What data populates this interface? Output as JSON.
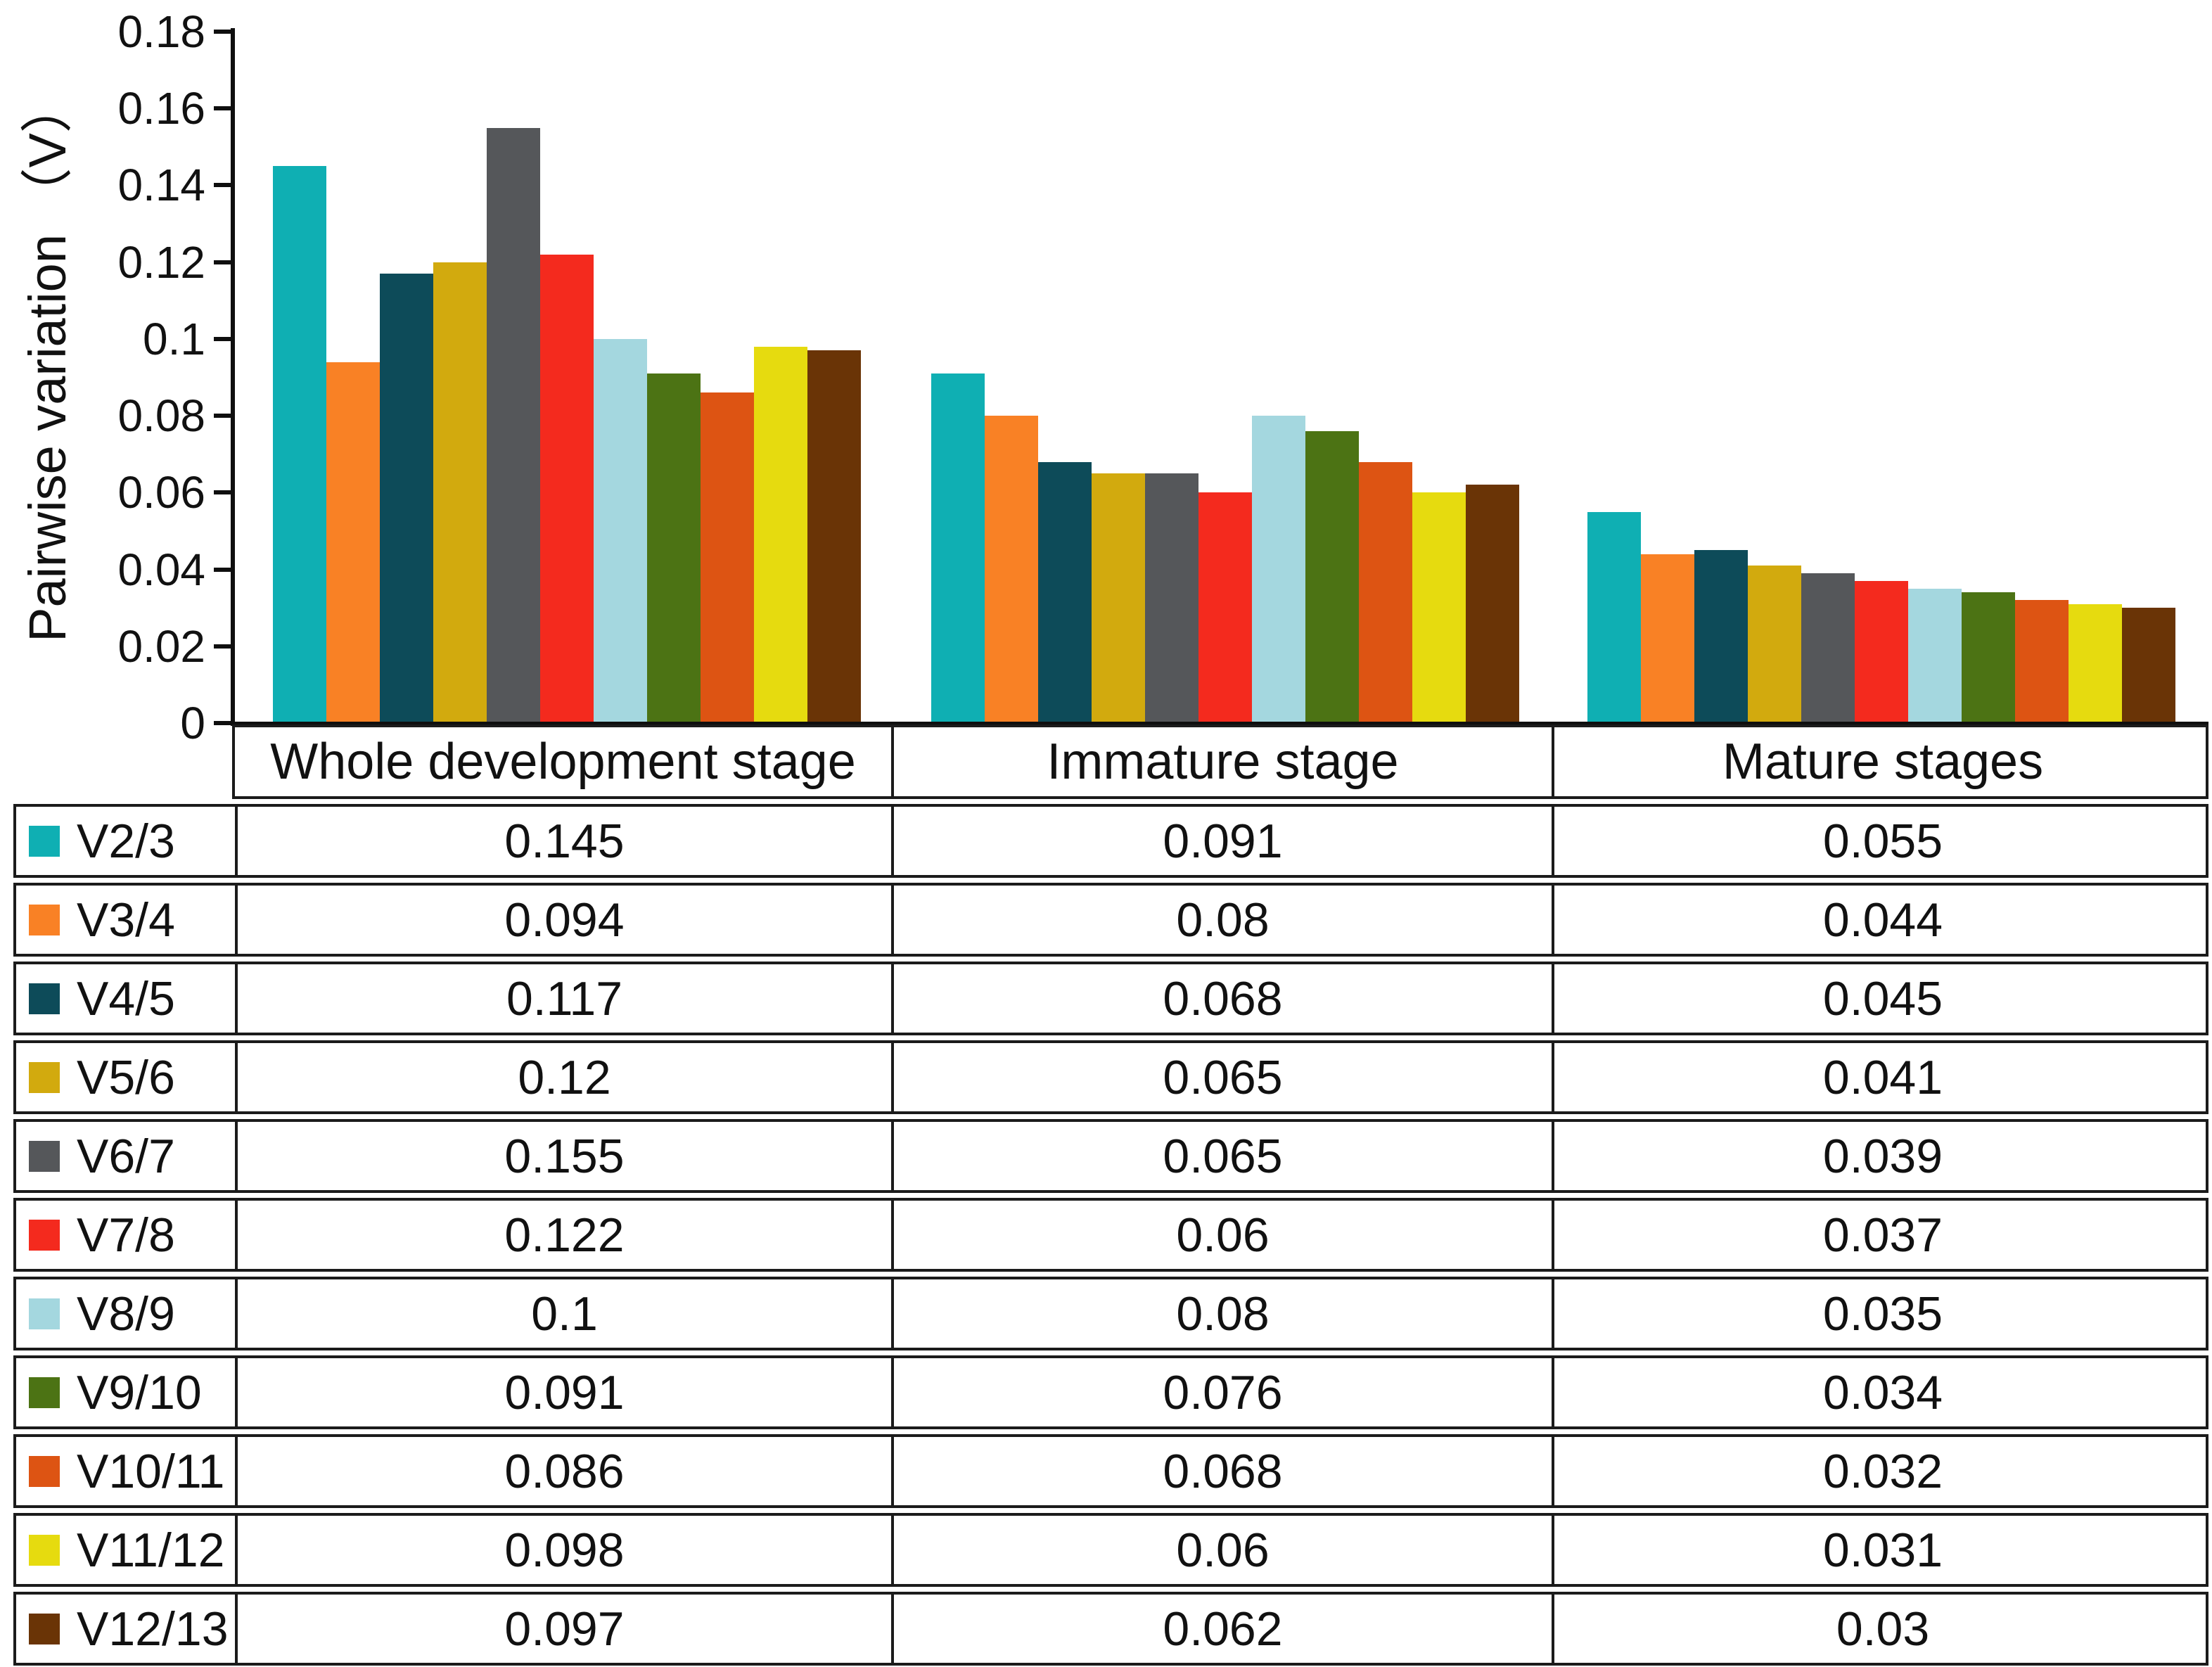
{
  "chart": {
    "y_axis_title": "Pairwise variation （V）",
    "tick_labels": [
      "0.18",
      "0.16",
      "0.14",
      "0.12",
      "0.1",
      "0.08",
      "0.06",
      "0.04",
      "0.02",
      "0"
    ]
  },
  "chart_data": {
    "type": "bar",
    "title": "",
    "xlabel": "",
    "ylabel": "Pairwise variation （V）",
    "ylim": [
      0,
      0.18
    ],
    "ytick_step": 0.02,
    "grid": false,
    "legend_position": "table-left-column",
    "categories": [
      "Whole development stage",
      "Immature stage",
      "Mature stages"
    ],
    "series": [
      {
        "name": "V2/3",
        "color": "#0FAFB3",
        "values": [
          0.145,
          0.091,
          0.055
        ]
      },
      {
        "name": "V3/4",
        "color": "#F98125",
        "values": [
          0.094,
          0.08,
          0.044
        ]
      },
      {
        "name": "V4/5",
        "color": "#0D4B59",
        "values": [
          0.117,
          0.068,
          0.045
        ]
      },
      {
        "name": "V5/6",
        "color": "#D2AA0E",
        "values": [
          0.12,
          0.065,
          0.041
        ]
      },
      {
        "name": "V6/7",
        "color": "#55575A",
        "values": [
          0.155,
          0.065,
          0.039
        ]
      },
      {
        "name": "V7/8",
        "color": "#F42A1E",
        "values": [
          0.122,
          0.06,
          0.037
        ]
      },
      {
        "name": "V8/9",
        "color": "#A4D7DF",
        "values": [
          0.1,
          0.08,
          0.035
        ]
      },
      {
        "name": "V9/10",
        "color": "#4C7314",
        "values": [
          0.091,
          0.076,
          0.034
        ]
      },
      {
        "name": "V10/11",
        "color": "#DD5413",
        "values": [
          0.086,
          0.068,
          0.032
        ]
      },
      {
        "name": "V11/12",
        "color": "#E6DB0F",
        "values": [
          0.098,
          0.06,
          0.031
        ]
      },
      {
        "name": "V12/13",
        "color": "#6A3406",
        "values": [
          0.097,
          0.062,
          0.03
        ]
      }
    ]
  },
  "table": {
    "headers": [
      "Whole development stage",
      "Immature stage",
      "Mature stages"
    ],
    "rows": [
      {
        "label": "V2/3",
        "values": [
          "0.145",
          "0.091",
          "0.055"
        ]
      },
      {
        "label": "V3/4",
        "values": [
          "0.094",
          "0.08",
          "0.044"
        ]
      },
      {
        "label": "V4/5",
        "values": [
          "0.117",
          "0.068",
          "0.045"
        ]
      },
      {
        "label": "V5/6",
        "values": [
          "0.12",
          "0.065",
          "0.041"
        ]
      },
      {
        "label": "V6/7",
        "values": [
          "0.155",
          "0.065",
          "0.039"
        ]
      },
      {
        "label": "V7/8",
        "values": [
          "0.122",
          "0.06",
          "0.037"
        ]
      },
      {
        "label": "V8/9",
        "values": [
          "0.1",
          "0.08",
          "0.035"
        ]
      },
      {
        "label": "V9/10",
        "values": [
          "0.091",
          "0.076",
          "0.034"
        ]
      },
      {
        "label": "V10/11",
        "values": [
          "0.086",
          "0.068",
          "0.032"
        ]
      },
      {
        "label": "V11/12",
        "values": [
          "0.098",
          "0.06",
          "0.031"
        ]
      },
      {
        "label": "V12/13",
        "values": [
          "0.097",
          "0.062",
          "0.03"
        ]
      }
    ]
  }
}
